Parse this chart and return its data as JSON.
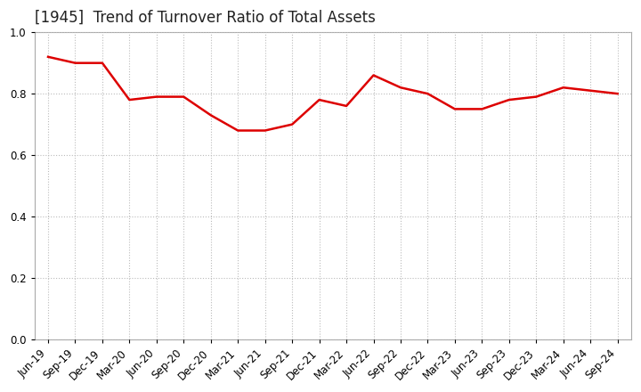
{
  "title": "[1945]  Trend of Turnover Ratio of Total Assets",
  "labels": [
    "Jun-19",
    "Sep-19",
    "Dec-19",
    "Mar-20",
    "Jun-20",
    "Sep-20",
    "Dec-20",
    "Mar-21",
    "Jun-21",
    "Sep-21",
    "Dec-21",
    "Mar-22",
    "Jun-22",
    "Sep-22",
    "Dec-22",
    "Mar-23",
    "Jun-23",
    "Sep-23",
    "Dec-23",
    "Mar-24",
    "Jun-24",
    "Sep-24"
  ],
  "values": [
    0.92,
    0.9,
    0.9,
    0.78,
    0.79,
    0.79,
    0.73,
    0.68,
    0.68,
    0.7,
    0.78,
    0.76,
    0.86,
    0.82,
    0.8,
    0.75,
    0.75,
    0.78,
    0.79,
    0.82,
    0.81,
    0.8
  ],
  "line_color": "#dd0000",
  "line_width": 1.8,
  "ylim": [
    0.0,
    1.0
  ],
  "yticks": [
    0.0,
    0.2,
    0.4,
    0.6,
    0.8,
    1.0
  ],
  "background_color": "#ffffff",
  "plot_bg_color": "#ffffff",
  "grid_color": "#bbbbbb",
  "title_fontsize": 12,
  "tick_fontsize": 8.5
}
